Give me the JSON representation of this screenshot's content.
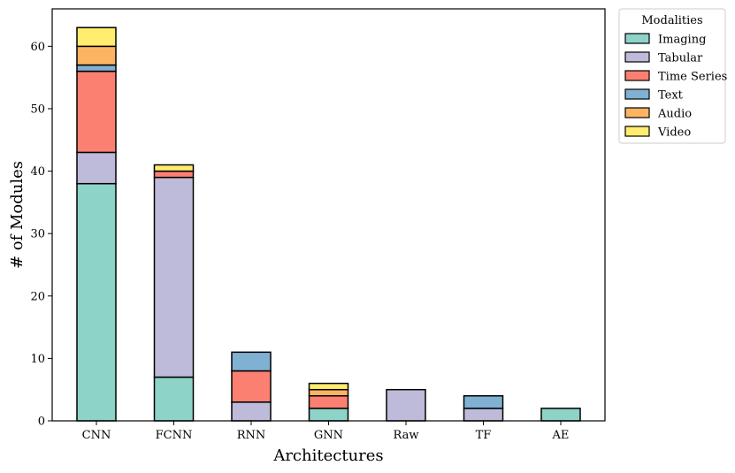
{
  "chart_data": {
    "type": "bar",
    "stacked": true,
    "categories": [
      "CNN",
      "FCNN",
      "RNN",
      "GNN",
      "Raw",
      "TF",
      "AE"
    ],
    "series": [
      {
        "name": "Imaging",
        "values": [
          38,
          7,
          0,
          2,
          0,
          0,
          2
        ],
        "color": "#8dd3c7"
      },
      {
        "name": "Tabular",
        "values": [
          5,
          32,
          3,
          0,
          5,
          2,
          0
        ],
        "color": "#bebada"
      },
      {
        "name": "Time Series",
        "values": [
          13,
          1,
          5,
          2,
          0,
          0,
          0
        ],
        "color": "#fb8072"
      },
      {
        "name": "Text",
        "values": [
          1,
          0,
          3,
          0,
          0,
          2,
          0
        ],
        "color": "#80b1d3"
      },
      {
        "name": "Audio",
        "values": [
          3,
          0,
          0,
          1,
          0,
          0,
          0
        ],
        "color": "#fdb462"
      },
      {
        "name": "Video",
        "values": [
          3,
          1,
          0,
          1,
          0,
          0,
          0
        ],
        "color": "#ffed6f"
      }
    ],
    "xlabel": "Architectures",
    "ylabel": "# of Modules",
    "ylim": [
      0,
      66
    ],
    "yticks": [
      0,
      10,
      20,
      30,
      40,
      50,
      60
    ],
    "legend": {
      "title": "Modalities",
      "placement": "outside-top-right"
    },
    "grid": false
  }
}
